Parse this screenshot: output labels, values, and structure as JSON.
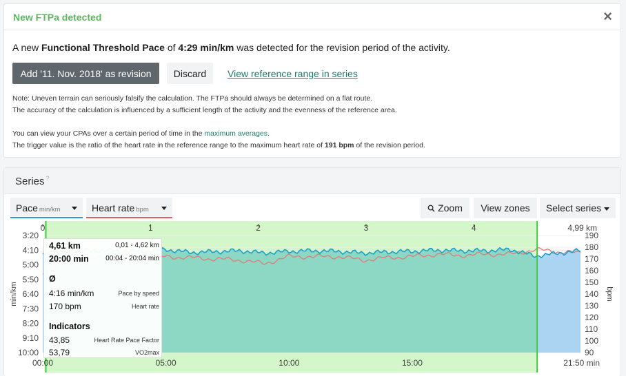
{
  "alert": {
    "title": "New FTPa detected",
    "close": "×",
    "message_pre": "A new ",
    "message_strong": "Functional Threshold Pace",
    "message_mid": " of ",
    "message_value": "4:29 min/km",
    "message_post": " was detected for the revision period of the activity.",
    "add_button": "Add '11. Nov. 2018' as revision",
    "discard_button": "Discard",
    "view_link": "View reference range in series",
    "note1": "Note: Uneven terrain can seriously falsify the calculation. The FTPa should always be determined on a flat route.",
    "note2": "The accuracy of the calculation is influenced by a sufficient length of the activity and the evenness of the reference area.",
    "note3_pre": "You can view your CPAs over a certain period of time in the ",
    "note3_link": "maximum averages",
    "note3_post": ".",
    "note4_pre": "The trigger value is the ratio of the heart rate in the reference range to the maximum heart rate of ",
    "note4_value": "191 bpm",
    "note4_post": " of the revision period."
  },
  "series": {
    "title": "Series",
    "help": "?",
    "pace_label": "Pace",
    "pace_unit": "min/km",
    "hr_label": "Heart rate",
    "hr_unit": "bpm",
    "zoom": "Zoom",
    "view_zones": "View zones",
    "select_series": "Select series"
  },
  "tooltip": {
    "distance": "4,61 km",
    "distance_range": "0,01 - 4,62 km",
    "time": "20:00 min",
    "time_range": "00:04 - 20:04 min",
    "avg_symbol": "Ø",
    "pace_value": "4:16 min/km",
    "pace_desc": "Pace by speed",
    "hr_value": "170 bpm",
    "hr_desc": "Heart rate",
    "indicators": "Indicators",
    "hrpf_value": "43,85",
    "hrpf_desc": "Heart Rate Pace Factor",
    "vo2_value": "53,79",
    "vo2_desc": "VO2max"
  },
  "colors": {
    "accent_green": "#5cb85c",
    "link": "#1f7a6c",
    "pace_line": "#1aa0c8",
    "hr_line": "#c87a50",
    "selection_fill": "#d3f7c8",
    "selection_border": "#44cc44",
    "overlap_fill": "#8cd8c4",
    "pace_area": "#aad4f2"
  },
  "chart_data": {
    "type": "area",
    "x_top_label": "km",
    "top_ticks": [
      "0",
      "1",
      "2",
      "3",
      "4",
      "4,99 km"
    ],
    "bottom_ticks": [
      "00:00",
      "05:00",
      "10:00",
      "15:00",
      "21:50 min"
    ],
    "left_axis_label": "min/km",
    "left_ticks": [
      "3:20",
      "4:10",
      "5:00",
      "5:50",
      "6:40",
      "7:30",
      "8:20",
      "9:10",
      "10:00"
    ],
    "right_axis_label": "bpm",
    "right_ticks": [
      "190",
      "180",
      "170",
      "160",
      "150",
      "140",
      "130",
      "120",
      "110",
      "100",
      "90"
    ],
    "hr_ylim": [
      90,
      190
    ],
    "time_range_min": [
      0,
      21.83
    ],
    "selection_min": [
      0.07,
      20.07
    ],
    "series": [
      {
        "name": "Pace",
        "unit": "min/km",
        "x_min": [
          0,
          1,
          2,
          3,
          4,
          5,
          6,
          7,
          8,
          9,
          10,
          11,
          12,
          13,
          14,
          15,
          16,
          17,
          18,
          19,
          20,
          21,
          21.83
        ],
        "values": [
          "4:20",
          "4:15",
          "4:10",
          "4:12",
          "4:14",
          "4:08",
          "4:18",
          "4:15",
          "4:12",
          "4:20",
          "4:14",
          "4:12",
          "4:14",
          "4:20",
          "4:16",
          "4:14",
          "4:10",
          "4:12",
          "4:12",
          "4:08",
          "4:30",
          "4:20",
          "4:12"
        ]
      },
      {
        "name": "Heart rate",
        "unit": "bpm",
        "x_min": [
          0,
          1,
          2,
          3,
          4,
          5,
          6,
          7,
          8,
          9,
          10,
          11,
          12,
          13,
          14,
          15,
          16,
          17,
          18,
          19,
          20,
          21,
          21.83
        ],
        "values": [
          158,
          168,
          170,
          171,
          170,
          172,
          171,
          170,
          169,
          166,
          172,
          172,
          172,
          169,
          171,
          172,
          174,
          173,
          174,
          174,
          178,
          176,
          175
        ]
      }
    ]
  }
}
